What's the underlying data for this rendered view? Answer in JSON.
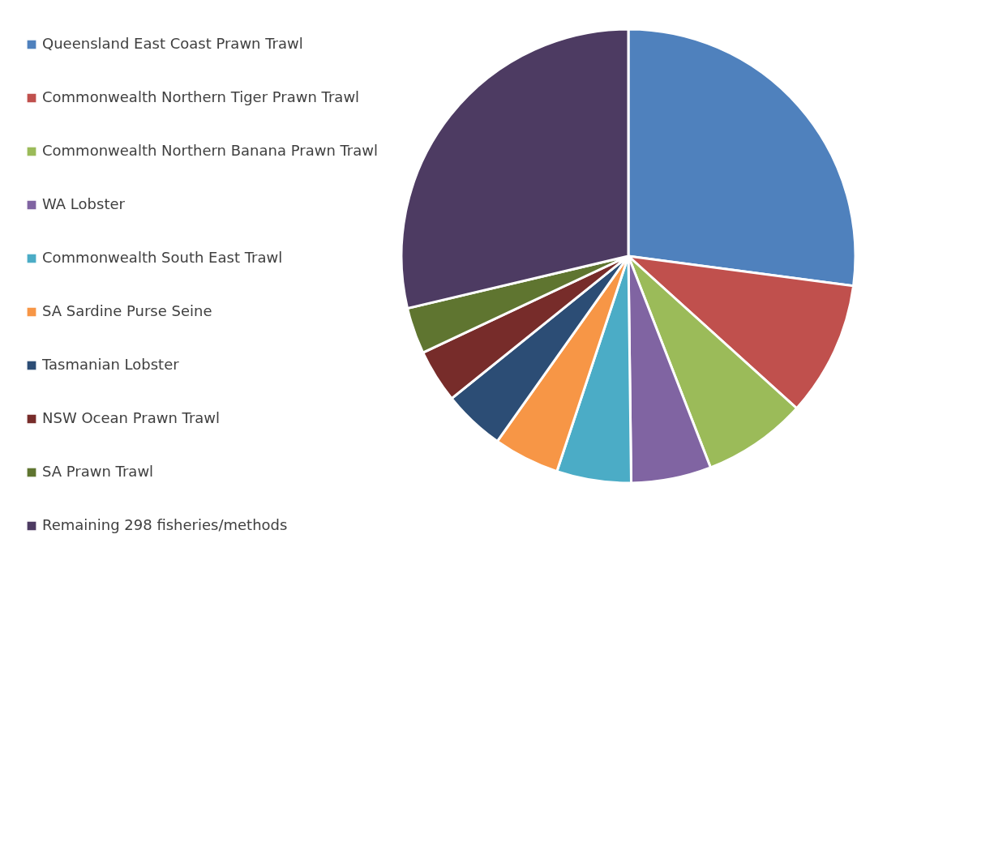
{
  "chart_data": {
    "type": "pie",
    "categories": [
      "Queensland East Coast Prawn Trawl",
      "Commonwealth Northern Tiger Prawn Trawl",
      "Commonwealth Northern Banana Prawn Trawl",
      "WA Lobster",
      "Commonwealth South East Trawl",
      "SA Sardine Purse Seine",
      "Tasmanian Lobster",
      "NSW Ocean Prawn Trawl",
      "SA Prawn Trawl",
      "Remaining 298 fisheries/methods"
    ],
    "values": [
      27.1,
      9.6,
      7.4,
      5.7,
      5.3,
      4.7,
      4.4,
      3.8,
      3.3,
      28.7
    ],
    "colors": [
      "#4f81bd",
      "#c0504d",
      "#9bbb59",
      "#8064a2",
      "#4bacc6",
      "#f79646",
      "#2c4d75",
      "#772c2a",
      "#5f7530",
      "#4d3b62"
    ],
    "legend": "left"
  }
}
